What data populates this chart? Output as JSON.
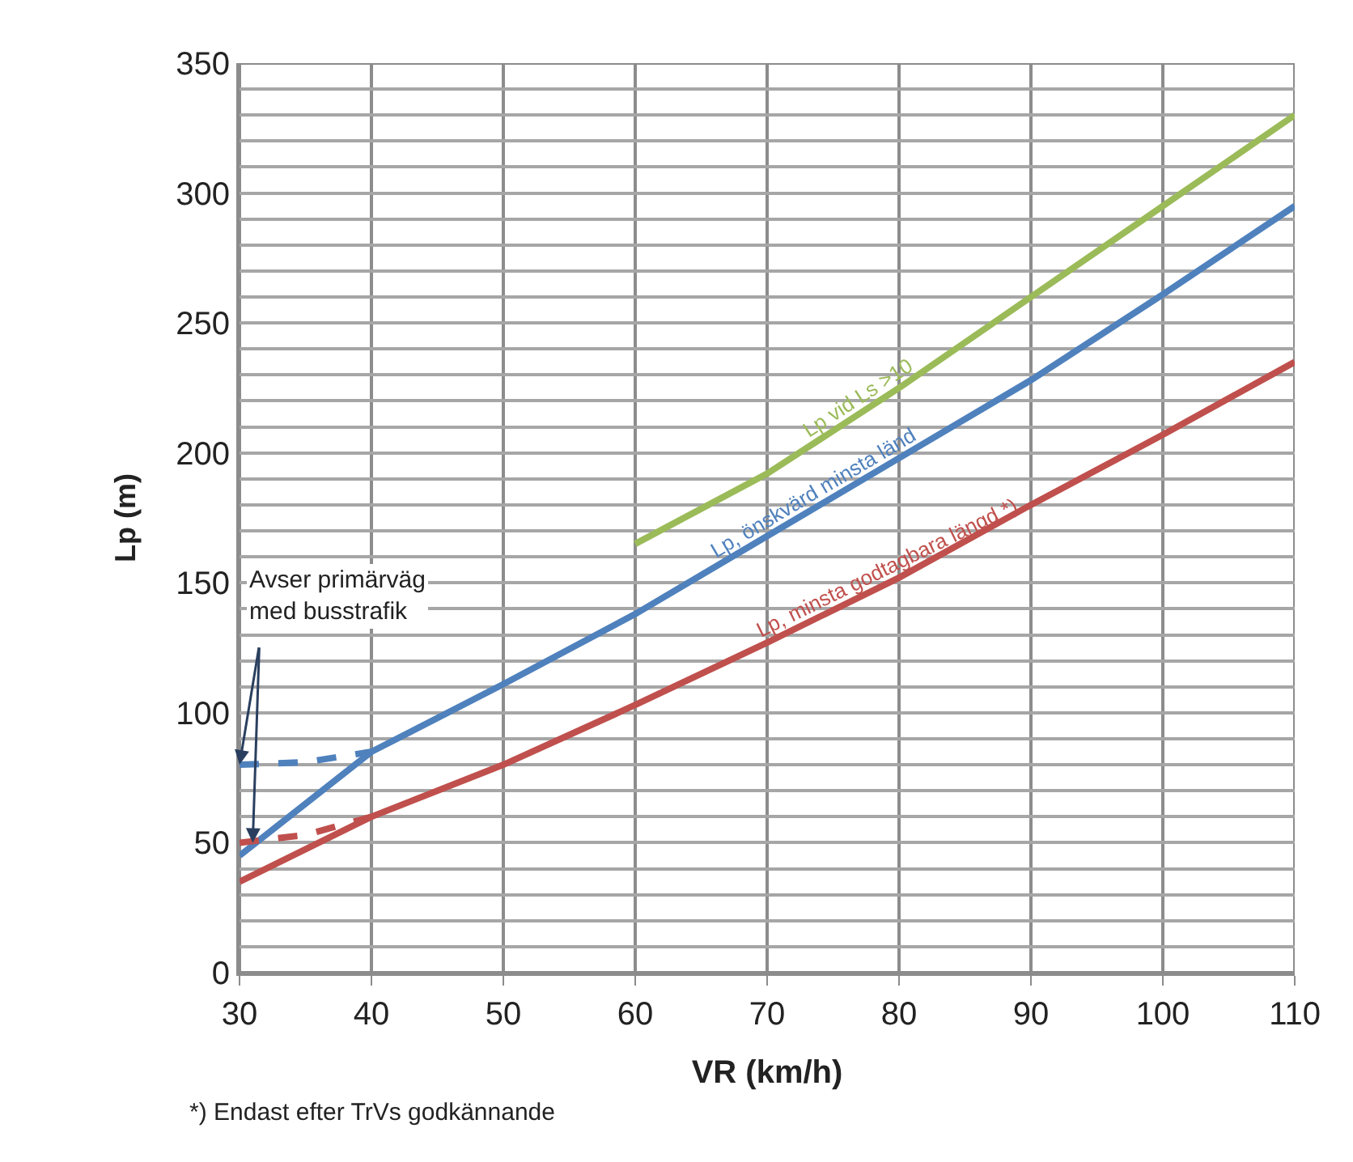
{
  "chart_data": {
    "type": "line",
    "xlabel": "VR (km/h)",
    "ylabel": "Lp (m)",
    "xlim": [
      30,
      110
    ],
    "xticks": [
      30,
      40,
      50,
      60,
      70,
      80,
      90,
      100,
      110
    ],
    "ylim": [
      0,
      350
    ],
    "yticks": [
      0,
      {
        "value": 10,
        "label": null
      },
      {
        "value": 20,
        "label": null
      },
      {
        "value": 30,
        "label": null
      },
      {
        "value": 40,
        "label": null
      },
      50,
      {
        "value": 60,
        "label": null
      },
      {
        "value": 70,
        "label": null
      },
      {
        "value": 80,
        "label": null
      },
      {
        "value": 90,
        "label": null
      },
      100,
      {
        "value": 110,
        "label": null
      },
      {
        "value": 120,
        "label": null
      },
      {
        "value": 130,
        "label": null
      },
      {
        "value": 140,
        "label": null
      },
      150,
      {
        "value": 160,
        "label": null
      },
      {
        "value": 170,
        "label": null
      },
      {
        "value": 180,
        "label": null
      },
      {
        "value": 190,
        "label": null
      },
      200,
      {
        "value": 210,
        "label": null
      },
      {
        "value": 220,
        "label": null
      },
      {
        "value": 230,
        "label": null
      },
      {
        "value": 240,
        "label": null
      },
      250,
      {
        "value": 260,
        "label": null
      },
      {
        "value": 270,
        "label": null
      },
      {
        "value": 280,
        "label": null
      },
      {
        "value": 290,
        "label": null
      },
      300,
      {
        "value": 310,
        "label": null
      },
      {
        "value": 320,
        "label": null
      },
      {
        "value": 330,
        "label": null
      },
      {
        "value": 340,
        "label": null
      },
      350
    ],
    "grid": true,
    "legend": false,
    "marker": "none",
    "series": [
      {
        "name": "Lp vid Ls >10",
        "color": "#9bbb59",
        "x": [
          60,
          70,
          80,
          90,
          100,
          110
        ],
        "values": [
          165,
          192,
          225,
          260,
          295,
          330
        ],
        "line_style": "solid"
      },
      {
        "name": "Lp, önskvärd minsta länd",
        "color": "#4f81bd",
        "x": [
          30,
          40,
          50,
          60,
          70,
          80,
          90,
          100,
          110
        ],
        "values": [
          45,
          85,
          111,
          138,
          168,
          198,
          228,
          261,
          295
        ],
        "line_style": "solid"
      },
      {
        "name": "Lp, minsta godtagbara längd *)",
        "color": "#c0504d",
        "x": [
          30,
          40,
          50,
          60,
          70,
          80,
          90,
          100,
          110
        ],
        "values": [
          35,
          60,
          80,
          103,
          127,
          152,
          180,
          207,
          235
        ],
        "line_style": "solid"
      },
      {
        "color": "#4f81bd",
        "x": [
          30,
          35,
          40
        ],
        "values": [
          80,
          81,
          85
        ],
        "line_style": "dashed"
      },
      {
        "color": "#c0504d",
        "x": [
          30,
          35,
          40
        ],
        "values": [
          50,
          53,
          60
        ],
        "line_style": "dashed"
      }
    ],
    "annotations": [
      {
        "text": "Avser primärväg\nmed busstrafik",
        "x": 30,
        "y": 80
      },
      "*) Endast efter TrVs godkännande"
    ]
  }
}
